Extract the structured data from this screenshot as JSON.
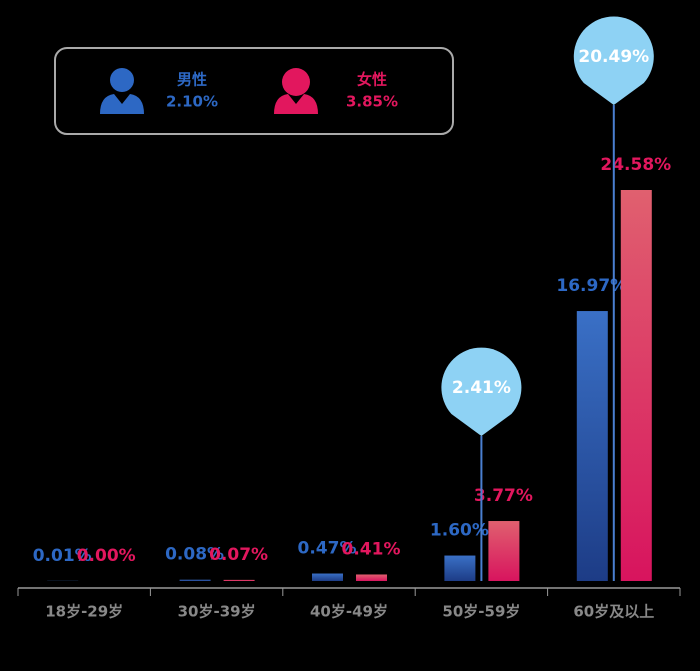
{
  "chart_data": {
    "type": "bar",
    "categories": [
      "18岁-29岁",
      "30岁-39岁",
      "40岁-49岁",
      "50岁-59岁",
      "60岁及以上"
    ],
    "series": [
      {
        "name": "男性",
        "color": "#2d68c4",
        "total": 2.1,
        "total_label": "2.10%",
        "values": [
          0.01,
          0.08,
          0.47,
          1.6,
          16.97
        ],
        "value_labels": [
          "0.01%",
          "0.08%",
          "0.47%",
          "1.60%",
          "16.97%"
        ]
      },
      {
        "name": "女性",
        "color": "#e2175e",
        "total": 3.85,
        "total_label": "3.85%",
        "values": [
          0.0,
          0.07,
          0.41,
          3.77,
          24.58
        ],
        "value_labels": [
          "0.00%",
          "0.07%",
          "0.41%",
          "3.77%",
          "24.58%"
        ]
      }
    ],
    "combined": {
      "values": [
        null,
        null,
        null,
        2.41,
        20.49
      ],
      "value_labels": [
        null,
        null,
        null,
        "2.41%",
        "20.49%"
      ],
      "color": "#8ed2f4"
    }
  }
}
